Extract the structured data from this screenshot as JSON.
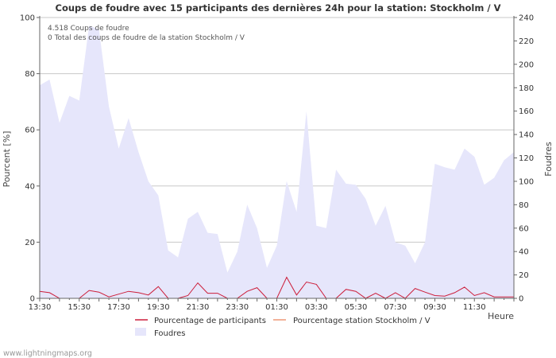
{
  "chart_data": {
    "type": "area",
    "title": "Coups de foudre avec 15 participants des dernières 24h pour la station: Stockholm / V",
    "ylabel_left": "Pourcent   [%]",
    "ylabel_right": "Foudres",
    "xlabel": "Heure",
    "ylim_left": [
      0,
      100
    ],
    "ylim_right": [
      0,
      240
    ],
    "yticks_left": [
      0,
      20,
      40,
      60,
      80,
      100
    ],
    "yticks_right": [
      0,
      20,
      40,
      60,
      80,
      100,
      120,
      140,
      160,
      180,
      200,
      220,
      240
    ],
    "x_tick_labels": [
      "13:30",
      "15:30",
      "17:30",
      "19:30",
      "21:30",
      "23:30",
      "01:30",
      "03:30",
      "05:30",
      "07:30",
      "09:30",
      "11:30"
    ],
    "x_hours": [
      0,
      0.5,
      1,
      1.5,
      2,
      2.5,
      3,
      3.5,
      4,
      4.5,
      5,
      5.5,
      6,
      6.5,
      7,
      7.5,
      8,
      8.5,
      9,
      9.5,
      10,
      10.5,
      11,
      11.5,
      12,
      12.5,
      13,
      13.5,
      14,
      14.5,
      15,
      15.5,
      16,
      16.5,
      17,
      17.5,
      18,
      18.5,
      19,
      19.5,
      20,
      20.5,
      21,
      21.5,
      22,
      22.5,
      23,
      23.5,
      24
    ],
    "annotations": [
      "4.518  Coups de foudre",
      "0 Total des coups de foudre de la station Stockholm / V"
    ],
    "series": [
      {
        "name": "Foudres",
        "axis": "right",
        "color": "#e6e6fb",
        "values": [
          182,
          187,
          150,
          173,
          169,
          233,
          230,
          164,
          128,
          154,
          125,
          100,
          88,
          41,
          35,
          68,
          74,
          56,
          55,
          22,
          40,
          80,
          60,
          26,
          45,
          100,
          74,
          160,
          62,
          60,
          110,
          98,
          97,
          85,
          62,
          79,
          48,
          45,
          30,
          48,
          115,
          112,
          110,
          128,
          121,
          97,
          103,
          118,
          125
        ]
      },
      {
        "name": "Pourcentage de participants",
        "axis": "left",
        "color": "#cc1e3a",
        "values": [
          2.5,
          2,
          0,
          0,
          0,
          2.8,
          2.2,
          0.5,
          1.5,
          2.5,
          2,
          1.2,
          4.2,
          0,
          0,
          1,
          5.5,
          1.8,
          1.8,
          0,
          0,
          2.5,
          3.8,
          0,
          0,
          7.5,
          1.2,
          5.8,
          5,
          0,
          0,
          3.2,
          2.5,
          0,
          1.8,
          0,
          2,
          0,
          3.5,
          2.2,
          1,
          0.8,
          2,
          4,
          1,
          2,
          0.5,
          0.5,
          0.5
        ]
      },
      {
        "name": "Pourcentage station Stockholm / V",
        "axis": "left",
        "color": "#ee9977",
        "values": [
          0,
          0,
          0,
          0,
          0,
          0,
          0,
          0,
          0,
          0,
          0,
          0,
          0,
          0,
          0,
          0,
          0,
          0,
          0,
          0,
          0,
          0,
          0,
          0,
          0,
          0,
          0,
          0,
          0,
          0,
          0,
          0,
          0,
          0,
          0,
          0,
          0,
          0,
          0,
          0,
          0,
          0,
          0,
          0,
          0,
          0,
          0,
          0,
          0
        ]
      }
    ],
    "legend": [
      "Pourcentage de participants",
      "Pourcentage station Stockholm / V",
      "Foudres"
    ]
  },
  "footer": "www.lightningmaps.org"
}
